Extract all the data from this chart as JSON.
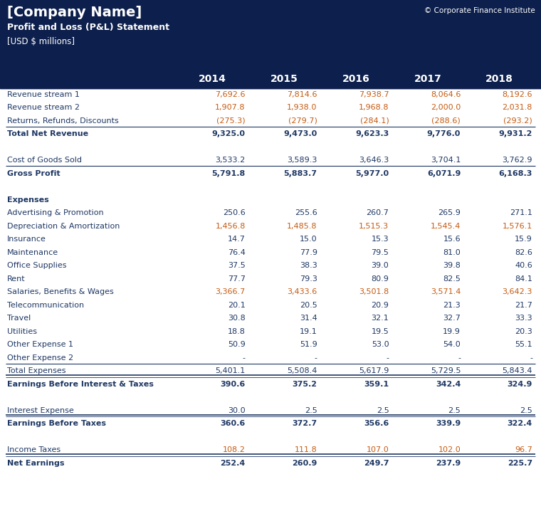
{
  "title_company": "[Company Name]",
  "title_statement": "Profit and Loss (P&L) Statement",
  "title_currency": "[USD $ millions]",
  "copyright": "© Corporate Finance Institute",
  "years": [
    "2014",
    "2015",
    "2016",
    "2017",
    "2018"
  ],
  "header_bg": "#0d1f4c",
  "dark_text": "#1f3864",
  "orange_text": "#c55a11",
  "row_data": [
    {
      "label": "Revenue stream 1",
      "values": [
        "7,692.6",
        "7,814.6",
        "7,938.7",
        "8,064.6",
        "8,192.6"
      ],
      "bold": false,
      "color_type": "orange",
      "sep_after": false,
      "sep_after_double": false,
      "empty": false,
      "header_only": false
    },
    {
      "label": "Revenue stream 2",
      "values": [
        "1,907.8",
        "1,938.0",
        "1,968.8",
        "2,000.0",
        "2,031.8"
      ],
      "bold": false,
      "color_type": "orange",
      "sep_after": false,
      "sep_after_double": false,
      "empty": false,
      "header_only": false
    },
    {
      "label": "Returns, Refunds, Discounts",
      "values": [
        "(275.3)",
        "(279.7)",
        "(284.1)",
        "(288.6)",
        "(293.2)"
      ],
      "bold": false,
      "color_type": "orange",
      "sep_after": true,
      "sep_after_double": false,
      "empty": false,
      "header_only": false
    },
    {
      "label": "Total Net Revenue",
      "values": [
        "9,325.0",
        "9,473.0",
        "9,623.3",
        "9,776.0",
        "9,931.2"
      ],
      "bold": true,
      "color_type": "dark",
      "sep_after": false,
      "sep_after_double": false,
      "empty": false,
      "header_only": false
    },
    {
      "label": "",
      "values": [
        "",
        "",
        "",
        "",
        ""
      ],
      "bold": false,
      "color_type": "dark",
      "sep_after": false,
      "sep_after_double": false,
      "empty": true,
      "header_only": false
    },
    {
      "label": "Cost of Goods Sold",
      "values": [
        "3,533.2",
        "3,589.3",
        "3,646.3",
        "3,704.1",
        "3,762.9"
      ],
      "bold": false,
      "color_type": "dark",
      "sep_after": true,
      "sep_after_double": false,
      "empty": false,
      "header_only": false
    },
    {
      "label": "Gross Profit",
      "values": [
        "5,791.8",
        "5,883.7",
        "5,977.0",
        "6,071.9",
        "6,168.3"
      ],
      "bold": true,
      "color_type": "dark",
      "sep_after": false,
      "sep_after_double": false,
      "empty": false,
      "header_only": false
    },
    {
      "label": "",
      "values": [
        "",
        "",
        "",
        "",
        ""
      ],
      "bold": false,
      "color_type": "dark",
      "sep_after": false,
      "sep_after_double": false,
      "empty": true,
      "header_only": false
    },
    {
      "label": "Expenses",
      "values": [
        "",
        "",
        "",
        "",
        ""
      ],
      "bold": true,
      "color_type": "dark",
      "sep_after": false,
      "sep_after_double": false,
      "empty": false,
      "header_only": true
    },
    {
      "label": "Advertising & Promotion",
      "values": [
        "250.6",
        "255.6",
        "260.7",
        "265.9",
        "271.1"
      ],
      "bold": false,
      "color_type": "dark",
      "sep_after": false,
      "sep_after_double": false,
      "empty": false,
      "header_only": false
    },
    {
      "label": "Depreciation & Amortization",
      "values": [
        "1,456.8",
        "1,485.8",
        "1,515.3",
        "1,545.4",
        "1,576.1"
      ],
      "bold": false,
      "color_type": "orange",
      "sep_after": false,
      "sep_after_double": false,
      "empty": false,
      "header_only": false
    },
    {
      "label": "Insurance",
      "values": [
        "14.7",
        "15.0",
        "15.3",
        "15.6",
        "15.9"
      ],
      "bold": false,
      "color_type": "dark",
      "sep_after": false,
      "sep_after_double": false,
      "empty": false,
      "header_only": false
    },
    {
      "label": "Maintenance",
      "values": [
        "76.4",
        "77.9",
        "79.5",
        "81.0",
        "82.6"
      ],
      "bold": false,
      "color_type": "dark",
      "sep_after": false,
      "sep_after_double": false,
      "empty": false,
      "header_only": false
    },
    {
      "label": "Office Supplies",
      "values": [
        "37.5",
        "38.3",
        "39.0",
        "39.8",
        "40.6"
      ],
      "bold": false,
      "color_type": "dark",
      "sep_after": false,
      "sep_after_double": false,
      "empty": false,
      "header_only": false
    },
    {
      "label": "Rent",
      "values": [
        "77.7",
        "79.3",
        "80.9",
        "82.5",
        "84.1"
      ],
      "bold": false,
      "color_type": "dark",
      "sep_after": false,
      "sep_after_double": false,
      "empty": false,
      "header_only": false
    },
    {
      "label": "Salaries, Benefits & Wages",
      "values": [
        "3,366.7",
        "3,433.6",
        "3,501.8",
        "3,571.4",
        "3,642.3"
      ],
      "bold": false,
      "color_type": "orange",
      "sep_after": false,
      "sep_after_double": false,
      "empty": false,
      "header_only": false
    },
    {
      "label": "Telecommunication",
      "values": [
        "20.1",
        "20.5",
        "20.9",
        "21.3",
        "21.7"
      ],
      "bold": false,
      "color_type": "dark",
      "sep_after": false,
      "sep_after_double": false,
      "empty": false,
      "header_only": false
    },
    {
      "label": "Travel",
      "values": [
        "30.8",
        "31.4",
        "32.1",
        "32.7",
        "33.3"
      ],
      "bold": false,
      "color_type": "dark",
      "sep_after": false,
      "sep_after_double": false,
      "empty": false,
      "header_only": false
    },
    {
      "label": "Utilities",
      "values": [
        "18.8",
        "19.1",
        "19.5",
        "19.9",
        "20.3"
      ],
      "bold": false,
      "color_type": "dark",
      "sep_after": false,
      "sep_after_double": false,
      "empty": false,
      "header_only": false
    },
    {
      "label": "Other Expense 1",
      "values": [
        "50.9",
        "51.9",
        "53.0",
        "54.0",
        "55.1"
      ],
      "bold": false,
      "color_type": "dark",
      "sep_after": false,
      "sep_after_double": false,
      "empty": false,
      "header_only": false
    },
    {
      "label": "Other Expense 2",
      "values": [
        "-",
        "-",
        "-",
        "-",
        "-"
      ],
      "bold": false,
      "color_type": "dark",
      "sep_after": true,
      "sep_after_double": false,
      "empty": false,
      "header_only": false
    },
    {
      "label": "Total Expenses",
      "values": [
        "5,401.1",
        "5,508.4",
        "5,617.9",
        "5,729.5",
        "5,843.4"
      ],
      "bold": false,
      "color_type": "dark",
      "sep_after": true,
      "sep_after_double": true,
      "empty": false,
      "header_only": false
    },
    {
      "label": "Earnings Before Interest & Taxes",
      "values": [
        "390.6",
        "375.2",
        "359.1",
        "342.4",
        "324.9"
      ],
      "bold": true,
      "color_type": "dark",
      "sep_after": false,
      "sep_after_double": false,
      "empty": false,
      "header_only": false
    },
    {
      "label": "",
      "values": [
        "",
        "",
        "",
        "",
        ""
      ],
      "bold": false,
      "color_type": "dark",
      "sep_after": false,
      "sep_after_double": false,
      "empty": true,
      "header_only": false
    },
    {
      "label": "Interest Expense",
      "values": [
        "30.0",
        "2.5",
        "2.5",
        "2.5",
        "2.5"
      ],
      "bold": false,
      "color_type": "dark",
      "sep_after": true,
      "sep_after_double": true,
      "empty": false,
      "header_only": false
    },
    {
      "label": "Earnings Before Taxes",
      "values": [
        "360.6",
        "372.7",
        "356.6",
        "339.9",
        "322.4"
      ],
      "bold": true,
      "color_type": "dark",
      "sep_after": false,
      "sep_after_double": false,
      "empty": false,
      "header_only": false
    },
    {
      "label": "",
      "values": [
        "",
        "",
        "",
        "",
        ""
      ],
      "bold": false,
      "color_type": "dark",
      "sep_after": false,
      "sep_after_double": false,
      "empty": true,
      "header_only": false
    },
    {
      "label": "Income Taxes",
      "values": [
        "108.2",
        "111.8",
        "107.0",
        "102.0",
        "96.7"
      ],
      "bold": false,
      "color_type": "orange",
      "sep_after": true,
      "sep_after_double": true,
      "empty": false,
      "header_only": false
    },
    {
      "label": "Net Earnings",
      "values": [
        "252.4",
        "260.9",
        "249.7",
        "237.9",
        "225.7"
      ],
      "bold": true,
      "color_type": "dark",
      "sep_after": false,
      "sep_after_double": false,
      "empty": false,
      "header_only": false
    }
  ]
}
